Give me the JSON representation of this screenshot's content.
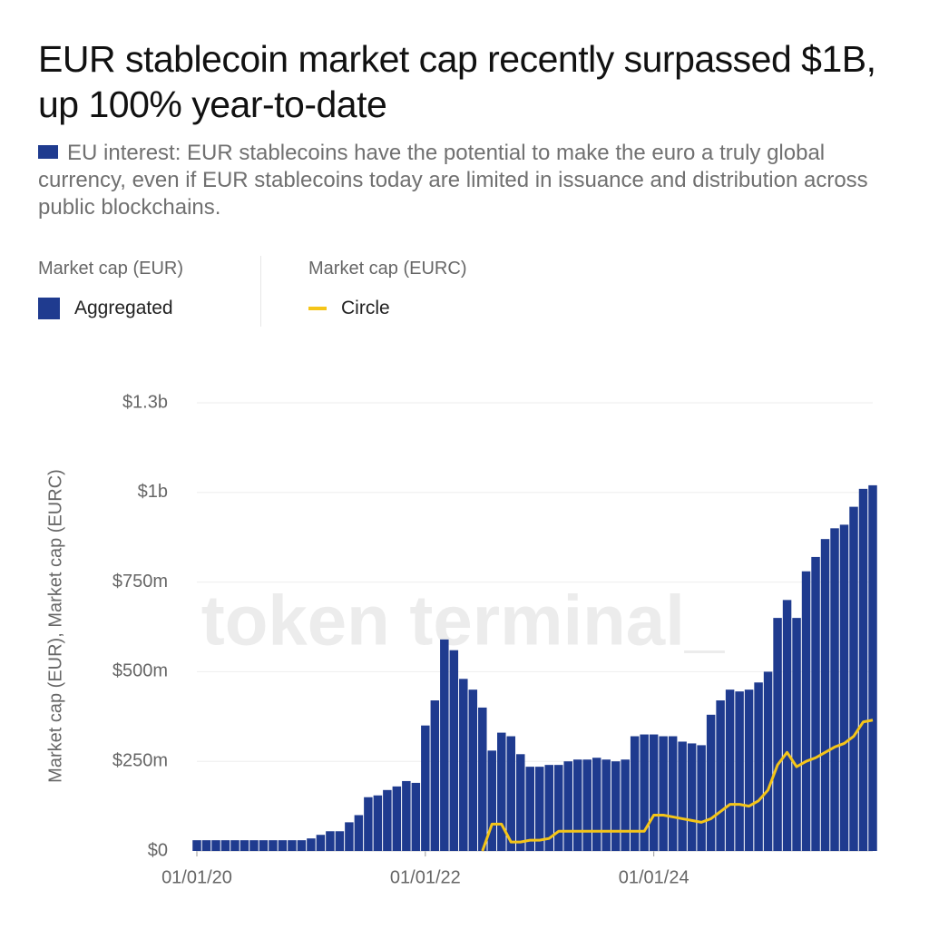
{
  "chart_data": {
    "type": "bar-line",
    "title": "EUR stablecoin market cap recently surpassed $1B, up 100% year-to-date",
    "subtitle": "EU interest: EUR stablecoins have the potential to make the euro a truly global currency, even if EUR stablecoins today are limited in issuance and distribution across public blockchains.",
    "watermark": "token terminal_",
    "y_label": "Market cap (EUR), Market cap (EURC)",
    "x": [
      "01/01/20",
      "02/01/20",
      "03/01/20",
      "04/01/20",
      "05/01/20",
      "06/01/20",
      "07/01/20",
      "08/01/20",
      "09/01/20",
      "10/01/20",
      "11/01/20",
      "12/01/20",
      "01/01/21",
      "02/01/21",
      "03/01/21",
      "04/01/21",
      "05/01/21",
      "06/01/21",
      "07/01/21",
      "08/01/21",
      "09/01/21",
      "10/01/21",
      "11/01/21",
      "12/01/21",
      "01/01/22",
      "02/01/22",
      "03/01/22",
      "04/01/22",
      "05/01/22",
      "06/01/22",
      "07/01/22",
      "08/01/22",
      "09/01/22",
      "10/01/22",
      "11/01/22",
      "12/01/22",
      "01/01/23",
      "02/01/23",
      "03/01/23",
      "04/01/23",
      "05/01/23",
      "06/01/23",
      "07/01/23",
      "08/01/23",
      "09/01/23",
      "10/01/23",
      "11/01/23",
      "12/01/23",
      "01/01/24",
      "02/01/24",
      "03/01/24",
      "04/01/24",
      "05/01/24",
      "06/01/24",
      "07/01/24",
      "08/01/24",
      "09/01/24",
      "10/01/24",
      "11/01/24",
      "12/01/24",
      "01/01/25",
      "02/01/25",
      "03/01/25",
      "04/01/25",
      "05/01/25",
      "06/01/25",
      "07/01/25",
      "08/01/25",
      "09/01/25",
      "10/01/25",
      "11/01/25",
      "12/01/25"
    ],
    "xticks": [
      "01/01/20",
      "01/01/22",
      "01/01/24"
    ],
    "ylim": [
      0,
      1250000000
    ],
    "yticks": [
      {
        "value": 0,
        "label": "$0"
      },
      {
        "value": 250000000,
        "label": "$250m"
      },
      {
        "value": 500000000,
        "label": "$500m"
      },
      {
        "value": 750000000,
        "label": "$750m"
      },
      {
        "value": 1000000000,
        "label": "$1b"
      },
      {
        "value": 1250000000,
        "label": "$1.3b"
      }
    ],
    "grid": true,
    "series": [
      {
        "name": "Aggregated",
        "group": "Market cap (EUR)",
        "type": "bar",
        "color": "#1f3b8f",
        "values": [
          30000000,
          30000000,
          30000000,
          30000000,
          30000000,
          30000000,
          30000000,
          30000000,
          30000000,
          30000000,
          30000000,
          30000000,
          35000000,
          45000000,
          55000000,
          55000000,
          80000000,
          100000000,
          150000000,
          155000000,
          170000000,
          180000000,
          195000000,
          190000000,
          350000000,
          420000000,
          590000000,
          560000000,
          480000000,
          450000000,
          400000000,
          280000000,
          330000000,
          320000000,
          270000000,
          235000000,
          235000000,
          240000000,
          240000000,
          250000000,
          255000000,
          255000000,
          260000000,
          255000000,
          250000000,
          255000000,
          320000000,
          325000000,
          325000000,
          320000000,
          320000000,
          305000000,
          300000000,
          295000000,
          380000000,
          420000000,
          450000000,
          445000000,
          450000000,
          470000000,
          500000000,
          650000000,
          700000000,
          650000000,
          780000000,
          820000000,
          870000000,
          900000000,
          910000000,
          960000000,
          1010000000,
          1020000000
        ]
      },
      {
        "name": "Circle",
        "group": "Market cap (EURC)",
        "type": "line",
        "color": "#f5c518",
        "values": [
          null,
          null,
          null,
          null,
          null,
          null,
          null,
          null,
          null,
          null,
          null,
          null,
          null,
          null,
          null,
          null,
          null,
          null,
          null,
          null,
          null,
          null,
          null,
          null,
          null,
          null,
          null,
          null,
          null,
          null,
          0,
          75000000,
          75000000,
          25000000,
          25000000,
          30000000,
          30000000,
          35000000,
          55000000,
          55000000,
          55000000,
          55000000,
          55000000,
          55000000,
          55000000,
          55000000,
          55000000,
          55000000,
          100000000,
          100000000,
          95000000,
          90000000,
          85000000,
          80000000,
          90000000,
          110000000,
          130000000,
          130000000,
          125000000,
          140000000,
          170000000,
          240000000,
          275000000,
          235000000,
          250000000,
          260000000,
          275000000,
          290000000,
          300000000,
          320000000,
          360000000,
          365000000
        ]
      }
    ]
  }
}
